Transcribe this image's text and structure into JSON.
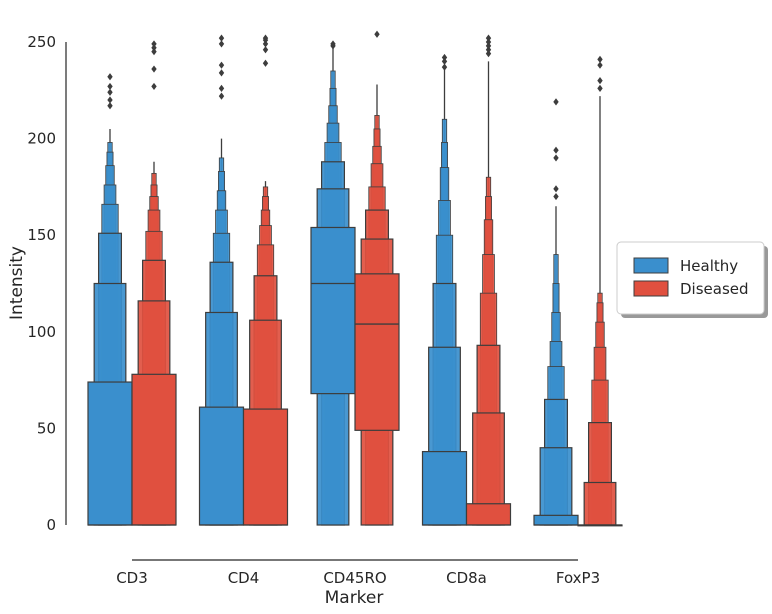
{
  "chart_data": {
    "type": "boxen",
    "title": "",
    "xlabel": "Marker",
    "ylabel": "Intensity",
    "ylim": [
      0,
      250
    ],
    "yticks": [
      0,
      50,
      100,
      150,
      200,
      250
    ],
    "grid": false,
    "legend_position": "right",
    "categories": [
      "CD3",
      "CD4",
      "CD45RO",
      "CD8a",
      "FoxP3"
    ],
    "series": [
      {
        "name": "Healthy",
        "color": "#3a8fcd",
        "boxes": [
          {
            "median": 0,
            "levels": [
              [
                0,
                74
              ],
              [
                0,
                125
              ],
              [
                0,
                151
              ],
              [
                0,
                166
              ],
              [
                0,
                176
              ],
              [
                0,
                186
              ],
              [
                0,
                193
              ],
              [
                0,
                198
              ]
            ],
            "whisker": [
              0,
              205
            ],
            "outliers": [
              217,
              220,
              224,
              227,
              232
            ]
          },
          {
            "median": 0,
            "levels": [
              [
                0,
                61
              ],
              [
                0,
                110
              ],
              [
                0,
                136
              ],
              [
                0,
                151
              ],
              [
                0,
                163
              ],
              [
                0,
                173
              ],
              [
                0,
                183
              ],
              [
                0,
                190
              ]
            ],
            "whisker": [
              0,
              200
            ],
            "outliers": [
              222,
              226,
              234,
              238,
              249,
              252
            ]
          },
          {
            "median": 125,
            "levels": [
              [
                68,
                154
              ],
              [
                0,
                174
              ],
              [
                0,
                188
              ],
              [
                0,
                198
              ],
              [
                0,
                208
              ],
              [
                0,
                217
              ],
              [
                0,
                226
              ],
              [
                0,
                235
              ]
            ],
            "whisker": [
              0,
              247
            ],
            "outliers": [
              248,
              249
            ]
          },
          {
            "median": 0,
            "levels": [
              [
                0,
                38
              ],
              [
                0,
                92
              ],
              [
                0,
                125
              ],
              [
                0,
                150
              ],
              [
                0,
                168
              ],
              [
                0,
                185
              ],
              [
                0,
                198
              ],
              [
                0,
                210
              ]
            ],
            "whisker": [
              0,
              237
            ],
            "outliers": [
              237,
              240,
              242
            ]
          },
          {
            "median": 0,
            "levels": [
              [
                0,
                5
              ],
              [
                0,
                40
              ],
              [
                0,
                65
              ],
              [
                0,
                82
              ],
              [
                0,
                95
              ],
              [
                0,
                110
              ],
              [
                0,
                125
              ],
              [
                0,
                140
              ]
            ],
            "whisker": [
              0,
              165
            ],
            "outliers": [
              170,
              174,
              190,
              194,
              219
            ]
          }
        ]
      },
      {
        "name": "Diseased",
        "color": "#e0503f",
        "boxes": [
          {
            "median": 0,
            "levels": [
              [
                0,
                78
              ],
              [
                0,
                116
              ],
              [
                0,
                137
              ],
              [
                0,
                152
              ],
              [
                0,
                163
              ],
              [
                0,
                170
              ],
              [
                0,
                176
              ],
              [
                0,
                182
              ]
            ],
            "whisker": [
              0,
              188
            ],
            "outliers": [
              227,
              236,
              245,
              247,
              249
            ]
          },
          {
            "median": 0,
            "levels": [
              [
                0,
                60
              ],
              [
                0,
                106
              ],
              [
                0,
                129
              ],
              [
                0,
                145
              ],
              [
                0,
                155
              ],
              [
                0,
                163
              ],
              [
                0,
                170
              ],
              [
                0,
                175
              ]
            ],
            "whisker": [
              0,
              178
            ],
            "outliers": [
              239,
              246,
              249,
              251,
              252
            ]
          },
          {
            "median": 104,
            "levels": [
              [
                49,
                130
              ],
              [
                0,
                148
              ],
              [
                0,
                163
              ],
              [
                0,
                175
              ],
              [
                0,
                187
              ],
              [
                0,
                196
              ],
              [
                0,
                205
              ],
              [
                0,
                212
              ]
            ],
            "whisker": [
              0,
              228
            ],
            "outliers": [
              254
            ]
          },
          {
            "median": 0,
            "levels": [
              [
                0,
                11
              ],
              [
                0,
                58
              ],
              [
                0,
                93
              ],
              [
                0,
                120
              ],
              [
                0,
                140
              ],
              [
                0,
                158
              ],
              [
                0,
                170
              ],
              [
                0,
                180
              ]
            ],
            "whisker": [
              0,
              240
            ],
            "outliers": [
              244,
              246,
              248,
              250,
              252
            ]
          },
          {
            "median": 0,
            "levels": [
              [
                0,
                0
              ],
              [
                0,
                22
              ],
              [
                0,
                53
              ],
              [
                0,
                75
              ],
              [
                0,
                92
              ],
              [
                0,
                105
              ],
              [
                0,
                115
              ],
              [
                0,
                120
              ]
            ],
            "whisker": [
              0,
              222
            ],
            "outliers": [
              226,
              230,
              238,
              241
            ]
          }
        ]
      }
    ]
  }
}
